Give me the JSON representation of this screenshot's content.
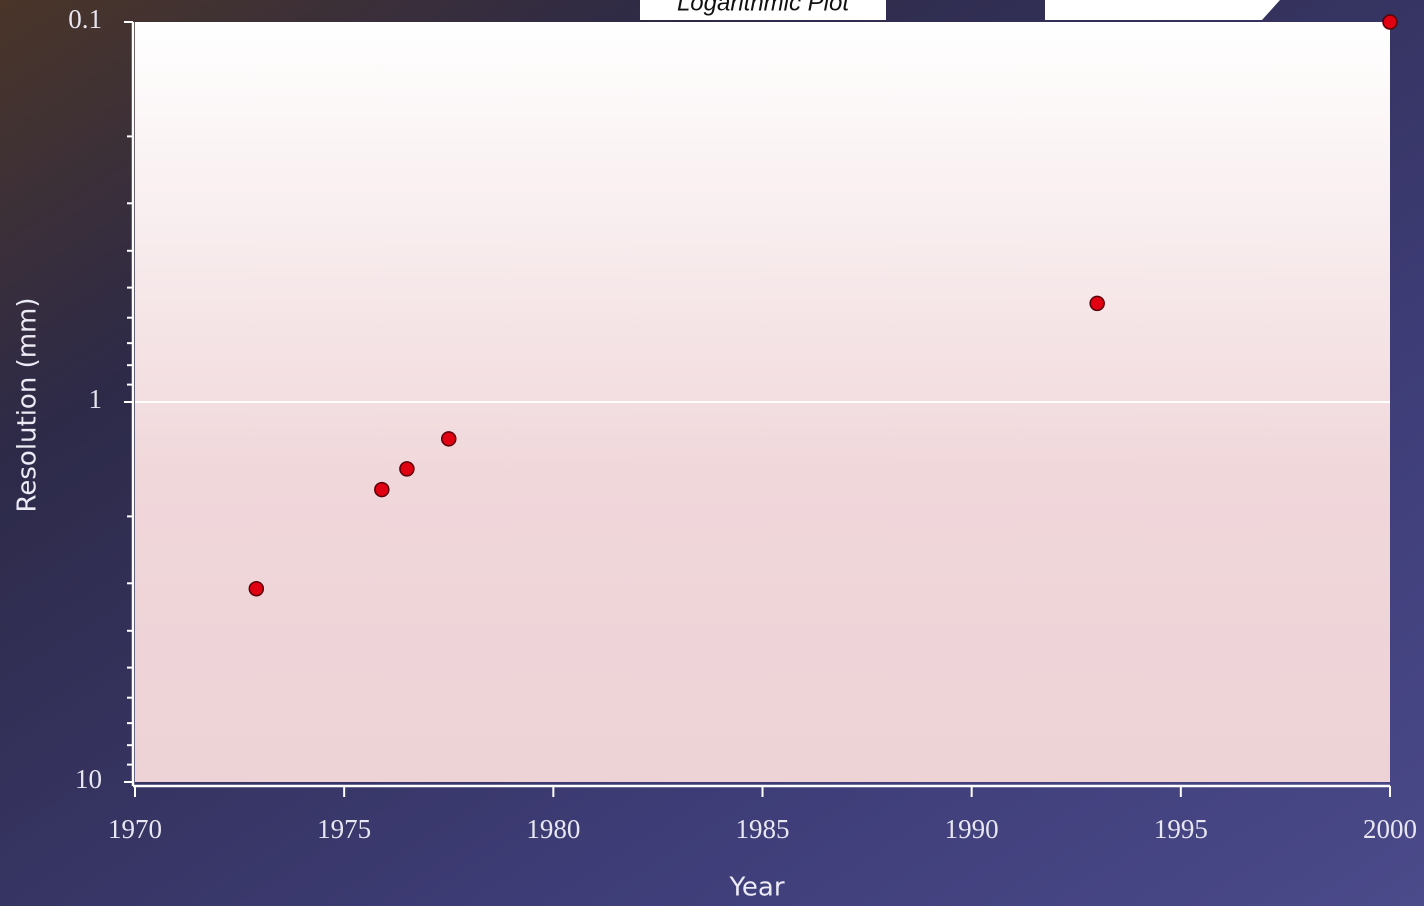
{
  "chart_data": {
    "type": "line",
    "title": "Logarithmic Plot",
    "x_label": "Year",
    "y_label": "Resolution (mm)",
    "x": [
      1972.9,
      1975.9,
      1976.5,
      1977.5,
      1993.0,
      2000
    ],
    "values": [
      3.1,
      1.7,
      1.5,
      1.25,
      0.55,
      0.1
    ],
    "color": "#222222",
    "marker_color": "#e00012",
    "xlim": [
      1970,
      2000
    ],
    "xticks": [
      1970,
      1975,
      1980,
      1985,
      1990,
      1995,
      2000
    ],
    "ylim": [
      0.1,
      10
    ],
    "yticks": [
      0.1,
      1,
      10
    ],
    "yminorticks": [
      0.2,
      0.3,
      0.4,
      0.5,
      0.6,
      0.7,
      0.8,
      0.9,
      2,
      3,
      4,
      5,
      6,
      7,
      8,
      9
    ],
    "log_y": true,
    "y_inverted": true,
    "grid": true
  }
}
